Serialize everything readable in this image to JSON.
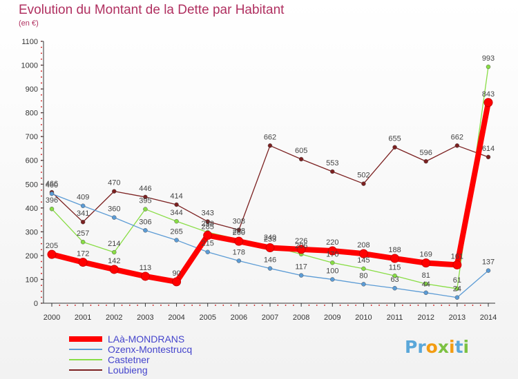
{
  "header": {
    "title": "Evolution du Montant de la Dette par Habitant",
    "subtitle": "(en €)"
  },
  "logo": {
    "text": "Proxiti"
  },
  "colors": {
    "title": "#b03060",
    "legend_text": "#4444cc",
    "axis": "#333333",
    "grid_dots": "#cc0000"
  },
  "chart_data": {
    "type": "line",
    "title": "Evolution du Montant de la Dette par Habitant",
    "subtitle": "(en €)",
    "x": [
      "2000",
      "2001",
      "2002",
      "2003",
      "2004",
      "2005",
      "2006",
      "2007",
      "2008",
      "2009",
      "2010",
      "2011",
      "2012",
      "2013",
      "2014"
    ],
    "ylim": [
      0,
      1100
    ],
    "yticks": [
      0,
      100,
      200,
      300,
      400,
      500,
      600,
      700,
      800,
      900,
      1000,
      1100
    ],
    "legend_position": "bottom-left",
    "series": [
      {
        "name": "LAà-MONDRANS",
        "color": "#ff0000",
        "thick": true,
        "values": [
          205,
          172,
          142,
          113,
          90,
          285,
          260,
          233,
          226,
          220,
          208,
          188,
          169,
          161,
          843
        ]
      },
      {
        "name": "Ozenx-Montestrucq",
        "color": "#5b9bd5",
        "thick": false,
        "values": [
          460,
          409,
          360,
          306,
          265,
          215,
          178,
          146,
          117,
          100,
          80,
          63,
          44,
          24,
          137
        ]
      },
      {
        "name": "Castetner",
        "color": "#88dd44",
        "thick": false,
        "values": [
          396,
          257,
          214,
          395,
          344,
          298,
          268,
          240,
          206,
          170,
          145,
          115,
          81,
          61,
          993
        ]
      },
      {
        "name": "Loubieng",
        "color": "#7b2020",
        "thick": false,
        "values": [
          466,
          341,
          470,
          446,
          414,
          343,
          308,
          662,
          605,
          553,
          502,
          655,
          596,
          662,
          614
        ]
      }
    ]
  }
}
